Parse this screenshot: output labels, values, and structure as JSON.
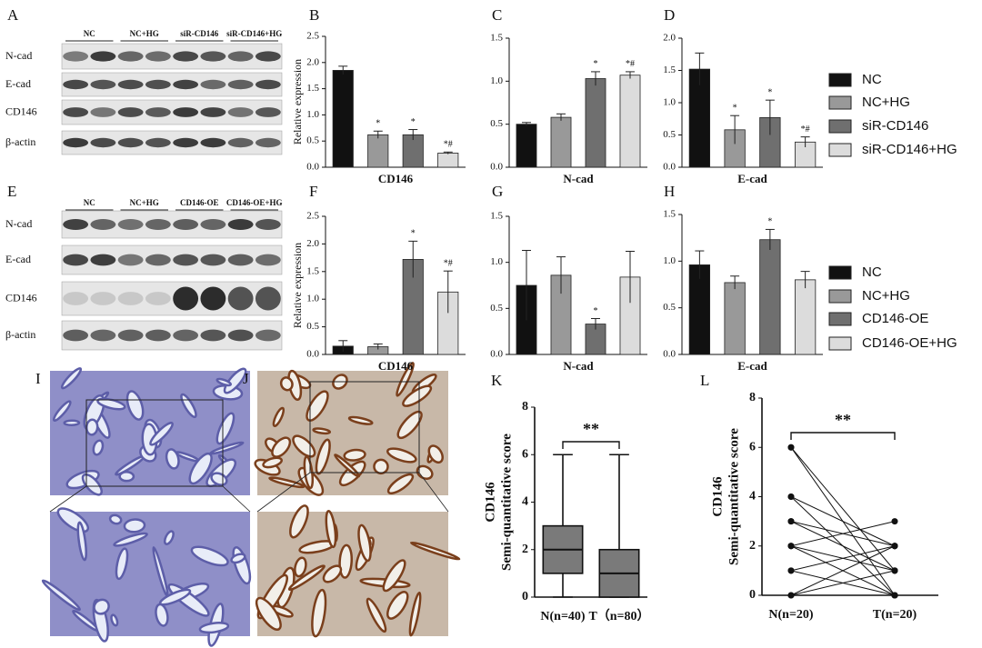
{
  "blots": [
    {
      "panel": "A",
      "groups": [
        "NC",
        "NC+HG",
        "siR-CD146",
        "siR-CD146+HG"
      ],
      "rows": [
        "N-cad",
        "E-cad",
        "CD146",
        "β-actin"
      ]
    },
    {
      "panel": "E",
      "groups": [
        "NC",
        "NC+HG",
        "CD146-OE",
        "CD146-OE+HG"
      ],
      "rows": [
        "N-cad",
        "E-cad",
        "CD146",
        "β-actin"
      ]
    }
  ],
  "legends": [
    {
      "items": [
        "NC",
        "NC+HG",
        "siR-CD146",
        "siR-CD146+HG"
      ],
      "colors": [
        "#111111",
        "#999999",
        "#6f6f6f",
        "#dcdcdc"
      ]
    },
    {
      "items": [
        "NC",
        "NC+HG",
        "CD146-OE",
        "CD146-OE+HG"
      ],
      "colors": [
        "#111111",
        "#999999",
        "#6f6f6f",
        "#dcdcdc"
      ]
    }
  ],
  "images": [
    {
      "panel": "I"
    },
    {
      "panel": "J"
    }
  ],
  "chart_data": [
    {
      "panel": "B",
      "type": "bar",
      "xlabel": "CD146",
      "ylabel": "Relative expression",
      "values": [
        1.85,
        0.62,
        0.62,
        0.27
      ],
      "errors": [
        0.08,
        0.07,
        0.1,
        0.02
      ],
      "annotations": [
        null,
        "*",
        "*",
        "*#"
      ],
      "colors": [
        "#111111",
        "#999999",
        "#6f6f6f",
        "#dcdcdc"
      ],
      "ylim": [
        0,
        2.5
      ],
      "yticks": [
        {
          "value": 0,
          "label": "0.0"
        },
        0.5,
        {
          "value": 1,
          "label": "1.0"
        },
        1.5,
        {
          "value": 2,
          "label": "2.0"
        },
        2.5
      ]
    },
    {
      "panel": "C",
      "type": "bar",
      "xlabel": "N-cad",
      "values": [
        0.5,
        0.58,
        1.03,
        1.07
      ],
      "errors": [
        0.02,
        0.04,
        0.08,
        0.04
      ],
      "annotations": [
        null,
        null,
        "*",
        "*#"
      ],
      "colors": [
        "#111111",
        "#999999",
        "#6f6f6f",
        "#dcdcdc"
      ],
      "ylim": [
        0,
        1.5
      ],
      "yticks": [
        {
          "value": 0,
          "label": "0.0"
        },
        0.5,
        {
          "value": 1,
          "label": "1.0"
        },
        1.5
      ]
    },
    {
      "panel": "D",
      "type": "bar",
      "xlabel": "E-cad",
      "values": [
        1.52,
        0.58,
        0.77,
        0.39
      ],
      "errors": [
        0.25,
        0.22,
        0.27,
        0.08
      ],
      "annotations": [
        null,
        "*",
        "*",
        "*#"
      ],
      "colors": [
        "#111111",
        "#999999",
        "#6f6f6f",
        "#dcdcdc"
      ],
      "ylim": [
        0,
        2
      ],
      "yticks": [
        {
          "value": 0,
          "label": "0.0"
        },
        0.5,
        {
          "value": 1,
          "label": "1.0"
        },
        1.5,
        {
          "value": 2,
          "label": "2.0"
        }
      ]
    },
    {
      "panel": "F",
      "type": "bar",
      "xlabel": "CD146",
      "ylabel": "Relative expression",
      "values": [
        0.15,
        0.14,
        1.72,
        1.13
      ],
      "errors": [
        0.1,
        0.05,
        0.33,
        0.38
      ],
      "annotations": [
        null,
        null,
        "*",
        "*#"
      ],
      "colors": [
        "#111111",
        "#999999",
        "#6f6f6f",
        "#dcdcdc"
      ],
      "ylim": [
        0,
        2.5
      ],
      "yticks": [
        {
          "value": 0,
          "label": "0.0"
        },
        0.5,
        {
          "value": 1,
          "label": "1.0"
        },
        1.5,
        {
          "value": 2,
          "label": "2.0"
        },
        2.5
      ]
    },
    {
      "panel": "G",
      "type": "bar",
      "xlabel": "N-cad",
      "values": [
        0.75,
        0.86,
        0.33,
        0.84
      ],
      "errors": [
        0.38,
        0.2,
        0.06,
        0.28
      ],
      "annotations": [
        null,
        null,
        "*",
        null
      ],
      "colors": [
        "#111111",
        "#999999",
        "#6f6f6f",
        "#dcdcdc"
      ],
      "ylim": [
        0,
        1.5
      ],
      "yticks": [
        {
          "value": 0,
          "label": "0.0"
        },
        0.5,
        {
          "value": 1,
          "label": "1.0"
        },
        1.5
      ]
    },
    {
      "panel": "H",
      "type": "bar",
      "xlabel": "E-cad",
      "values": [
        0.96,
        0.77,
        1.23,
        0.8
      ],
      "errors": [
        0.15,
        0.07,
        0.11,
        0.09
      ],
      "annotations": [
        null,
        null,
        "*",
        null
      ],
      "colors": [
        "#111111",
        "#999999",
        "#6f6f6f",
        "#dcdcdc"
      ],
      "ylim": [
        0,
        1.5
      ],
      "yticks": [
        {
          "value": 0,
          "label": "0.0"
        },
        0.5,
        {
          "value": 1,
          "label": "1.0"
        },
        1.5
      ]
    },
    {
      "panel": "K",
      "type": "box",
      "ylabel": [
        "CD146",
        "Semi-quantitative score"
      ],
      "categories": [
        "N(n=40)",
        "T（n=80）"
      ],
      "color": "#7a7a7a",
      "significance": "**",
      "boxes": [
        {
          "min": 0,
          "q1": 1,
          "median": 2,
          "q3": 3,
          "max": 6
        },
        {
          "min": 0,
          "q1": 0,
          "median": 1,
          "q3": 2,
          "max": 6
        }
      ],
      "ylim": [
        0,
        8
      ],
      "yticks": [
        0,
        2,
        4,
        6,
        8
      ]
    },
    {
      "panel": "L",
      "type": "paired",
      "ylabel": [
        "CD146",
        "Semi-quantitative score"
      ],
      "categories": [
        "N(n=20)",
        "T(n=20)"
      ],
      "significance": "**",
      "pairs": [
        [
          6,
          0
        ],
        [
          6,
          1
        ],
        [
          4,
          2
        ],
        [
          4,
          0
        ],
        [
          3,
          1
        ],
        [
          3,
          2
        ],
        [
          2,
          3
        ],
        [
          2,
          0
        ],
        [
          2,
          1
        ],
        [
          1,
          2
        ],
        [
          1,
          0
        ],
        [
          0,
          2
        ],
        [
          0,
          1
        ]
      ],
      "ylim": [
        0,
        8
      ],
      "yticks": [
        0,
        2,
        4,
        6,
        8
      ]
    }
  ]
}
